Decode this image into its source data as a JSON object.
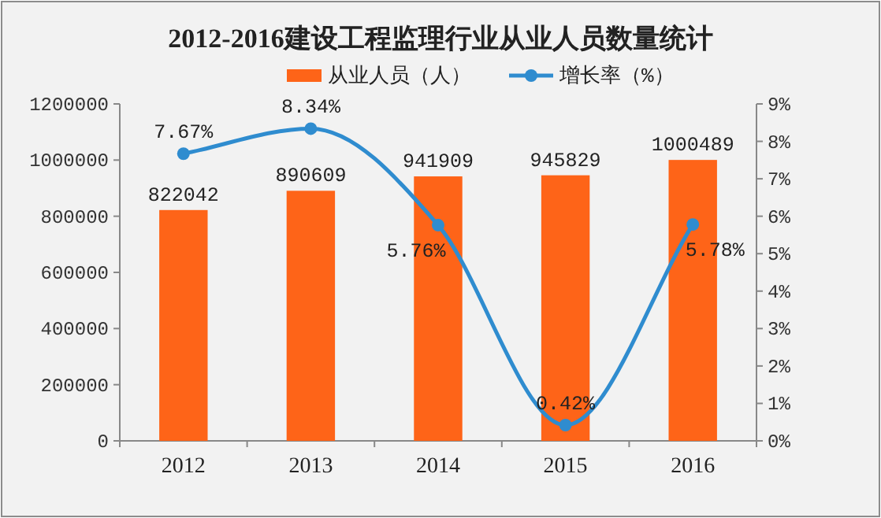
{
  "chart_data": {
    "type": "bar",
    "title": "2012-2016建设工程监理行业从业人员数量统计",
    "categories": [
      "2012",
      "2013",
      "2014",
      "2015",
      "2016"
    ],
    "series": [
      {
        "name": "从业人员（人）",
        "color": "#fe6418",
        "values": [
          822042,
          890609,
          941909,
          945829,
          1000489
        ]
      },
      {
        "name": "增长率（%）",
        "type": "line",
        "axis": "y2",
        "color": "#2f8ccf",
        "values": [
          7.67,
          8.34,
          5.76,
          0.42,
          5.78
        ],
        "value_labels": [
          "7.67%",
          "8.34%",
          "5.76%",
          "0.42%",
          "5.78%"
        ]
      }
    ],
    "ylim": [
      0,
      1200000
    ],
    "yticks": [
      0,
      200000,
      400000,
      600000,
      800000,
      1000000,
      1200000
    ],
    "y2lim": [
      0,
      9
    ],
    "y2ticks": [
      {
        "value": 0,
        "label": "0%"
      },
      {
        "value": 1,
        "label": "1%"
      },
      {
        "value": 2,
        "label": "2%"
      },
      {
        "value": 3,
        "label": "3%"
      },
      {
        "value": 4,
        "label": "4%"
      },
      {
        "value": 5,
        "label": "5%"
      },
      {
        "value": 6,
        "label": "6%"
      },
      {
        "value": 7,
        "label": "7%"
      },
      {
        "value": 8,
        "label": "8%"
      },
      {
        "value": 9,
        "label": "9%"
      }
    ],
    "data_labels": true,
    "legend": "top",
    "marker": "circle",
    "grid": false
  }
}
